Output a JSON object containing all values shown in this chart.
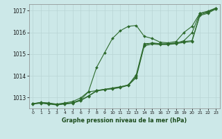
{
  "title": "Graphe pression niveau de la mer (hPa)",
  "background_color": "#cce8e8",
  "plot_background": "#cce8e8",
  "grid_color_major": "#b8d4d4",
  "grid_color_minor": "#d4e8e8",
  "line_color": "#2d6a2d",
  "xlim": [
    -0.5,
    23.5
  ],
  "ylim": [
    1012.5,
    1017.3
  ],
  "yticks": [
    1013,
    1014,
    1015,
    1016,
    1017
  ],
  "xticks": [
    0,
    1,
    2,
    3,
    4,
    5,
    6,
    7,
    8,
    9,
    10,
    11,
    12,
    13,
    14,
    15,
    16,
    17,
    18,
    19,
    20,
    21,
    22,
    23
  ],
  "series": [
    [
      1012.72,
      1012.78,
      1012.75,
      1012.7,
      1012.75,
      1012.82,
      1012.98,
      1013.28,
      1014.38,
      1015.05,
      1015.72,
      1016.08,
      1016.28,
      1016.32,
      1015.82,
      1015.72,
      1015.55,
      1015.52,
      1015.58,
      1016.0,
      1016.28,
      1016.88,
      1016.98,
      1017.12
    ],
    [
      1012.72,
      1012.76,
      1012.72,
      1012.68,
      1012.72,
      1012.76,
      1012.88,
      1013.08,
      1013.32,
      1013.38,
      1013.42,
      1013.48,
      1013.58,
      1013.98,
      1015.42,
      1015.52,
      1015.48,
      1015.48,
      1015.52,
      1015.58,
      1015.62,
      1016.82,
      1016.92,
      1017.12
    ],
    [
      1012.7,
      1012.74,
      1012.7,
      1012.66,
      1012.7,
      1012.74,
      1012.86,
      1013.06,
      1013.3,
      1013.36,
      1013.4,
      1013.46,
      1013.56,
      1013.92,
      1015.38,
      1015.46,
      1015.44,
      1015.44,
      1015.48,
      1015.54,
      1015.58,
      1016.78,
      1016.88,
      1017.08
    ],
    [
      1012.72,
      1012.76,
      1012.74,
      1012.68,
      1012.72,
      1012.76,
      1012.9,
      1013.26,
      1013.32,
      1013.38,
      1013.44,
      1013.5,
      1013.58,
      1014.05,
      1015.48,
      1015.5,
      1015.46,
      1015.46,
      1015.5,
      1015.62,
      1015.98,
      1016.88,
      1016.95,
      1017.1
    ]
  ]
}
